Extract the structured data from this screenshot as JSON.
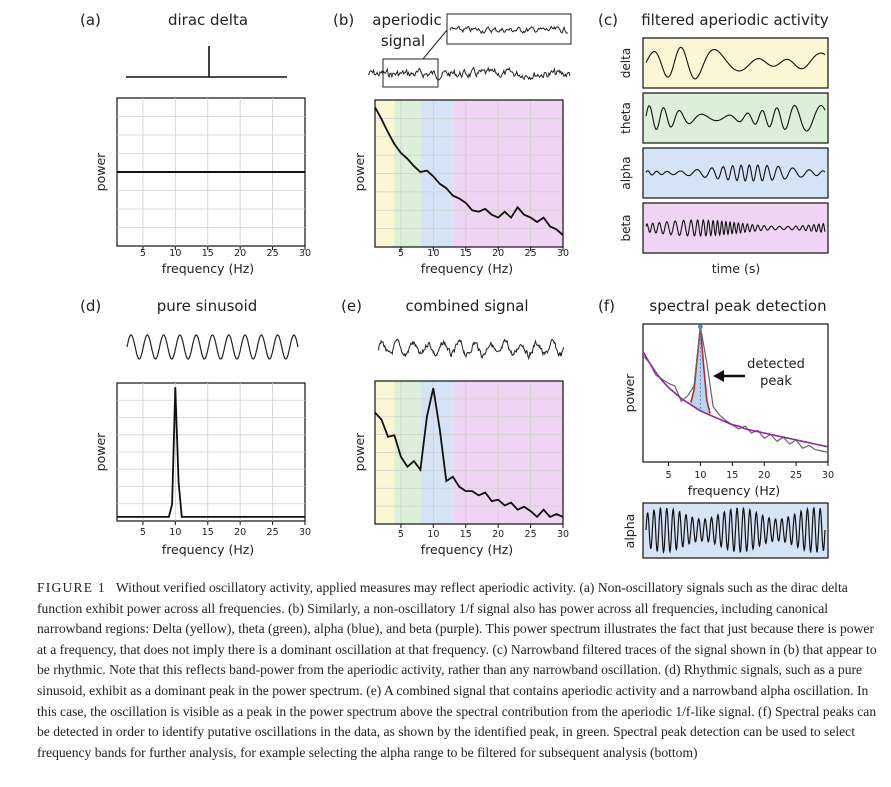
{
  "figure": {
    "band_colors": {
      "delta": "#fbf7d4",
      "theta": "#dcefd9",
      "alpha": "#d5e3f6",
      "beta": "#f0d4f3"
    },
    "panels": {
      "a": {
        "label": "(a)",
        "title": "dirac delta",
        "ylabel": "power",
        "xlabel": "frequency (Hz)",
        "xticks": [
          "5",
          "10",
          "15",
          "20",
          "25",
          "30"
        ]
      },
      "b": {
        "label": "(b)",
        "title": "aperiodic",
        "title2": "signal",
        "ylabel": "power",
        "xlabel": "frequency (Hz)",
        "xticks": [
          "5",
          "10",
          "15",
          "20",
          "25",
          "30"
        ]
      },
      "c": {
        "label": "(c)",
        "title": "filtered aperiodic activity",
        "xlabel": "time (s)",
        "bands": [
          "delta",
          "theta",
          "alpha",
          "beta"
        ]
      },
      "d": {
        "label": "(d)",
        "title": "pure sinusoid",
        "ylabel": "power",
        "xlabel": "frequency (Hz)",
        "xticks": [
          "5",
          "10",
          "15",
          "20",
          "25",
          "30"
        ]
      },
      "e": {
        "label": "(e)",
        "title": "combined signal",
        "ylabel": "power",
        "xlabel": "frequency (Hz)",
        "xticks": [
          "5",
          "10",
          "15",
          "20",
          "25",
          "30"
        ]
      },
      "f": {
        "label": "(f)",
        "title": "spectral peak detection",
        "ylabel": "power",
        "xlabel": "frequency (Hz)",
        "xticks": [
          "5",
          "10",
          "15",
          "20",
          "25",
          "30"
        ],
        "annotation1": "detected",
        "annotation2": "peak",
        "bottom_label": "alpha"
      }
    }
  },
  "caption": {
    "label": "FIGURE 1",
    "text": "Without verified oscillatory activity, applied measures may reflect aperiodic activity. (a) Non-oscillatory signals such as the dirac delta function exhibit power across all frequencies. (b) Similarly, a non-oscillatory 1/f signal also has power across all frequencies, including canonical narrowband regions: Delta (yellow), theta (green), alpha (blue), and beta (purple). This power spectrum illustrates the fact that just because there is power at a frequency, that does not imply there is a dominant oscillation at that frequency. (c) Narrowband filtered traces of the signal shown in (b) that appear to be rhythmic. Note that this reflects band-power from the aperiodic activity, rather than any narrowband oscillation. (d) Rhythmic signals, such as a pure sinusoid, exhibit as a dominant peak in the power spectrum. (e) A combined signal that contains aperiodic activity and a narrowband alpha oscillation. In this case, the oscillation is visible as a peak in the power spectrum above the spectral contribution from the aperiodic 1/f-like signal. (f) Spectral peaks can be detected in order to identify putative oscillations in the data, as shown by the identified peak, in green. Spectral peak detection can be used to select frequency bands for further analysis, for example selecting the alpha range to be filtered for subsequent analysis (bottom)"
  },
  "chart_data": [
    {
      "panel": "a",
      "type": "line",
      "title": "dirac delta",
      "xlabel": "frequency (Hz)",
      "ylabel": "power",
      "xlim": [
        1,
        30
      ],
      "ylim": [
        0,
        1
      ],
      "series": [
        {
          "name": "power",
          "x": [
            1,
            30
          ],
          "y": [
            0.5,
            0.5
          ]
        }
      ]
    },
    {
      "panel": "b",
      "type": "line",
      "title": "aperiodic signal",
      "xlabel": "frequency (Hz)",
      "ylabel": "power",
      "xlim": [
        1,
        30
      ],
      "ylim": [
        0,
        1
      ],
      "bands": [
        {
          "name": "delta",
          "range": [
            1,
            4
          ]
        },
        {
          "name": "theta",
          "range": [
            4,
            8
          ]
        },
        {
          "name": "alpha",
          "range": [
            8,
            13
          ]
        },
        {
          "name": "beta",
          "range": [
            13,
            30
          ]
        }
      ],
      "series": [
        {
          "name": "power",
          "x": [
            1,
            2,
            3,
            4,
            5,
            6,
            7,
            8,
            9,
            10,
            11,
            12,
            13,
            14,
            15,
            16,
            17,
            18,
            19,
            20,
            21,
            22,
            23,
            24,
            25,
            26,
            27,
            28,
            29,
            30
          ],
          "y": [
            0.95,
            0.87,
            0.78,
            0.7,
            0.64,
            0.6,
            0.55,
            0.51,
            0.52,
            0.48,
            0.43,
            0.4,
            0.35,
            0.33,
            0.3,
            0.25,
            0.24,
            0.26,
            0.22,
            0.2,
            0.24,
            0.2,
            0.27,
            0.22,
            0.2,
            0.17,
            0.2,
            0.14,
            0.12,
            0.08
          ]
        }
      ]
    },
    {
      "panel": "d",
      "type": "line",
      "title": "pure sinusoid",
      "xlabel": "frequency (Hz)",
      "ylabel": "power",
      "xlim": [
        1,
        30
      ],
      "ylim": [
        0,
        1
      ],
      "series": [
        {
          "name": "power",
          "x": [
            1,
            2,
            3,
            4,
            5,
            6,
            7,
            8,
            9,
            9.5,
            10,
            10.5,
            11,
            12,
            13,
            14,
            15,
            16,
            17,
            18,
            19,
            20,
            21,
            22,
            23,
            24,
            25,
            26,
            27,
            28,
            29,
            30
          ],
          "y": [
            0.03,
            0.03,
            0.03,
            0.03,
            0.03,
            0.03,
            0.03,
            0.03,
            0.03,
            0.12,
            0.97,
            0.28,
            0.03,
            0.03,
            0.03,
            0.03,
            0.03,
            0.03,
            0.03,
            0.03,
            0.03,
            0.03,
            0.03,
            0.03,
            0.03,
            0.03,
            0.03,
            0.03,
            0.03,
            0.03,
            0.03,
            0.03
          ]
        }
      ]
    },
    {
      "panel": "e",
      "type": "line",
      "title": "combined signal",
      "xlabel": "frequency (Hz)",
      "ylabel": "power",
      "xlim": [
        1,
        30
      ],
      "ylim": [
        0,
        1
      ],
      "bands": [
        {
          "name": "delta",
          "range": [
            1,
            4
          ]
        },
        {
          "name": "theta",
          "range": [
            4,
            8
          ]
        },
        {
          "name": "alpha",
          "range": [
            8,
            13
          ]
        },
        {
          "name": "beta",
          "range": [
            13,
            30
          ]
        }
      ],
      "series": [
        {
          "name": "power",
          "x": [
            1,
            2,
            3,
            4,
            5,
            6,
            7,
            8,
            9,
            10,
            11,
            12,
            13,
            14,
            15,
            16,
            17,
            18,
            19,
            20,
            21,
            22,
            23,
            24,
            25,
            26,
            27,
            28,
            29,
            30
          ],
          "y": [
            0.78,
            0.73,
            0.61,
            0.62,
            0.47,
            0.4,
            0.44,
            0.38,
            0.75,
            0.95,
            0.66,
            0.3,
            0.33,
            0.26,
            0.23,
            0.23,
            0.2,
            0.22,
            0.16,
            0.17,
            0.13,
            0.15,
            0.1,
            0.12,
            0.09,
            0.05,
            0.1,
            0.05,
            0.07,
            0.05
          ]
        }
      ]
    },
    {
      "panel": "f",
      "type": "line",
      "title": "spectral peak detection",
      "xlabel": "frequency (Hz)",
      "ylabel": "power",
      "xlim": [
        1,
        30
      ],
      "ylim": [
        0,
        1
      ],
      "series": [
        {
          "name": "spectrum",
          "x": [
            1,
            2,
            3,
            4,
            5,
            6,
            7,
            8,
            9,
            10,
            11,
            12,
            13,
            14,
            15,
            16,
            17,
            18,
            19,
            20,
            21,
            22,
            23,
            24,
            25,
            26,
            27,
            28,
            29,
            30
          ],
          "y": [
            0.77,
            0.72,
            0.63,
            0.6,
            0.57,
            0.55,
            0.44,
            0.48,
            0.55,
            0.98,
            0.72,
            0.4,
            0.34,
            0.3,
            0.27,
            0.24,
            0.26,
            0.21,
            0.23,
            0.17,
            0.2,
            0.15,
            0.18,
            0.13,
            0.16,
            0.1,
            0.12,
            0.09,
            0.08,
            0.07
          ]
        },
        {
          "name": "aperiodic fit",
          "x": [
            1,
            2,
            3,
            4,
            5,
            6,
            7,
            8,
            9,
            10,
            11,
            12,
            13,
            14,
            15,
            16,
            17,
            18,
            19,
            20,
            21,
            22,
            23,
            24,
            25,
            26,
            27,
            28,
            29,
            30
          ],
          "y": [
            0.8,
            0.72,
            0.65,
            0.59,
            0.54,
            0.5,
            0.46,
            0.43,
            0.4,
            0.37,
            0.35,
            0.33,
            0.31,
            0.29,
            0.27,
            0.26,
            0.24,
            0.23,
            0.22,
            0.21,
            0.2,
            0.19,
            0.18,
            0.17,
            0.16,
            0.15,
            0.14,
            0.13,
            0.12,
            0.11
          ]
        },
        {
          "name": "detected peak",
          "x": [
            8.5,
            9,
            9.5,
            10,
            10.5,
            11,
            11.5
          ],
          "y": [
            0.43,
            0.52,
            0.75,
            0.98,
            0.7,
            0.45,
            0.35
          ]
        }
      ]
    }
  ]
}
